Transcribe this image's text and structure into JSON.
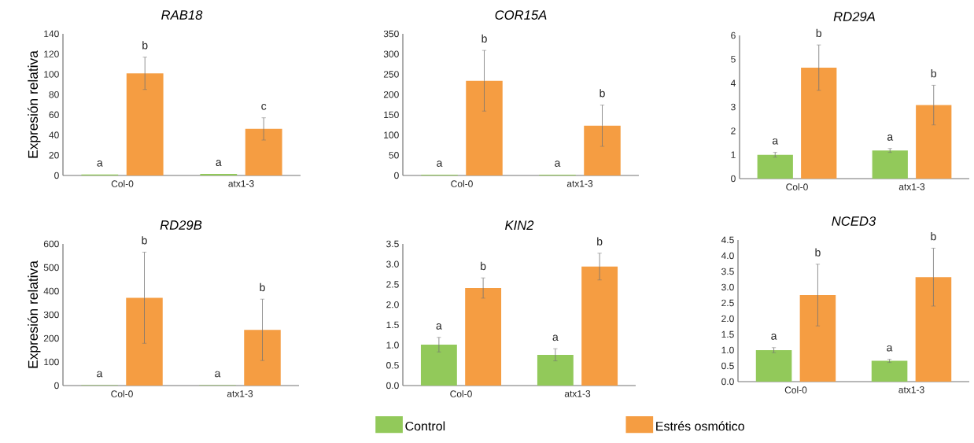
{
  "chart_data": [
    {
      "type": "bar",
      "title": "RAB18",
      "ylabel": "Expresión relativa",
      "categories": [
        "Col-0",
        "atx1-3"
      ],
      "ylim": [
        0,
        140
      ],
      "yticks": [
        0,
        20,
        40,
        60,
        80,
        100,
        120,
        140
      ],
      "series": [
        {
          "color": "#92c95a",
          "values": [
            1,
            1.5
          ],
          "errors": [
            null,
            null
          ]
        },
        {
          "color": "#f59d42",
          "values": [
            101,
            46
          ],
          "errors": [
            16,
            11
          ]
        }
      ],
      "annotations": [
        "a",
        "b",
        "a",
        "c"
      ]
    },
    {
      "type": "bar",
      "title": "COR15A",
      "categories": [
        "Col-0",
        "atx1-3"
      ],
      "ylim": [
        0,
        350
      ],
      "yticks": [
        0,
        50,
        100,
        150,
        200,
        250,
        300,
        350
      ],
      "series": [
        {
          "color": "#92c95a",
          "values": [
            2,
            2
          ],
          "errors": [
            null,
            null
          ]
        },
        {
          "color": "#f59d42",
          "values": [
            234,
            123
          ],
          "errors": [
            75,
            51
          ]
        }
      ],
      "annotations": [
        "a",
        "b",
        "a",
        "b"
      ]
    },
    {
      "type": "bar",
      "title": "RD29A",
      "categories": [
        "Col-0",
        "atx1-3"
      ],
      "ylim": [
        0,
        6
      ],
      "yticks": [
        0,
        1,
        2,
        3,
        4,
        5,
        6
      ],
      "series": [
        {
          "color": "#92c95a",
          "values": [
            1.0,
            1.18
          ],
          "errors": [
            0.1,
            0.08
          ]
        },
        {
          "color": "#f59d42",
          "values": [
            4.65,
            3.08
          ],
          "errors": [
            0.95,
            0.83
          ]
        }
      ],
      "annotations": [
        "a",
        "b",
        "a",
        "b"
      ]
    },
    {
      "type": "bar",
      "title": "RD29B",
      "ylabel": "Expresión relativa",
      "categories": [
        "Col-0",
        "atx1-3"
      ],
      "ylim": [
        0,
        600
      ],
      "yticks": [
        0,
        100,
        200,
        300,
        400,
        500,
        600
      ],
      "series": [
        {
          "color": "#92c95a",
          "values": [
            2,
            2
          ],
          "errors": [
            null,
            null
          ]
        },
        {
          "color": "#f59d42",
          "values": [
            372,
            236
          ],
          "errors": [
            193,
            130
          ]
        }
      ],
      "annotations": [
        "a",
        "b",
        "a",
        "b"
      ]
    },
    {
      "type": "bar",
      "title": "KIN2",
      "categories": [
        "Col-0",
        "atx1-3"
      ],
      "ylim": [
        0,
        3.5
      ],
      "yticks": [
        {
          "value": 0,
          "label": "0.0"
        },
        {
          "value": 0.5,
          "label": "0.5"
        },
        {
          "value": 1,
          "label": "1.0"
        },
        {
          "value": 1.5,
          "label": "1.5"
        },
        {
          "value": 2,
          "label": "2.0"
        },
        {
          "value": 2.5,
          "label": "2.5"
        },
        {
          "value": 3,
          "label": "3.0"
        },
        {
          "value": 3.5,
          "label": "3.5"
        }
      ],
      "series": [
        {
          "name": "Control",
          "color": "#92c95a",
          "values": [
            1.01,
            0.76
          ],
          "errors": [
            0.18,
            0.15
          ]
        },
        {
          "name": "Estrés osmótico",
          "color": "#f59d42",
          "values": [
            2.41,
            2.94
          ],
          "errors": [
            0.25,
            0.33
          ]
        }
      ],
      "legend": "bottom",
      "annotations": [
        "a",
        "b",
        "a",
        "b"
      ]
    },
    {
      "type": "bar",
      "title": "NCED3",
      "categories": [
        "Col-0",
        "atx1-3"
      ],
      "ylim": [
        0,
        4.5
      ],
      "yticks": [
        {
          "value": 0,
          "label": "0.0"
        },
        {
          "value": 0.5,
          "label": "0.5"
        },
        {
          "value": 1,
          "label": "1.0"
        },
        {
          "value": 1.5,
          "label": "1.5"
        },
        {
          "value": 2,
          "label": "2.0"
        },
        {
          "value": 2.5,
          "label": "2.5"
        },
        {
          "value": 3,
          "label": "3.0"
        },
        {
          "value": 3.5,
          "label": "3.5"
        },
        {
          "value": 4,
          "label": "4.0"
        },
        {
          "value": 4.5,
          "label": "4.5"
        }
      ],
      "series": [
        {
          "color": "#92c95a",
          "values": [
            1.0,
            0.66
          ],
          "errors": [
            0.08,
            0.05
          ]
        },
        {
          "color": "#f59d42",
          "values": [
            2.75,
            3.32
          ],
          "errors": [
            0.98,
            0.92
          ]
        }
      ],
      "annotations": [
        "a",
        "b",
        "a",
        "b"
      ]
    }
  ]
}
